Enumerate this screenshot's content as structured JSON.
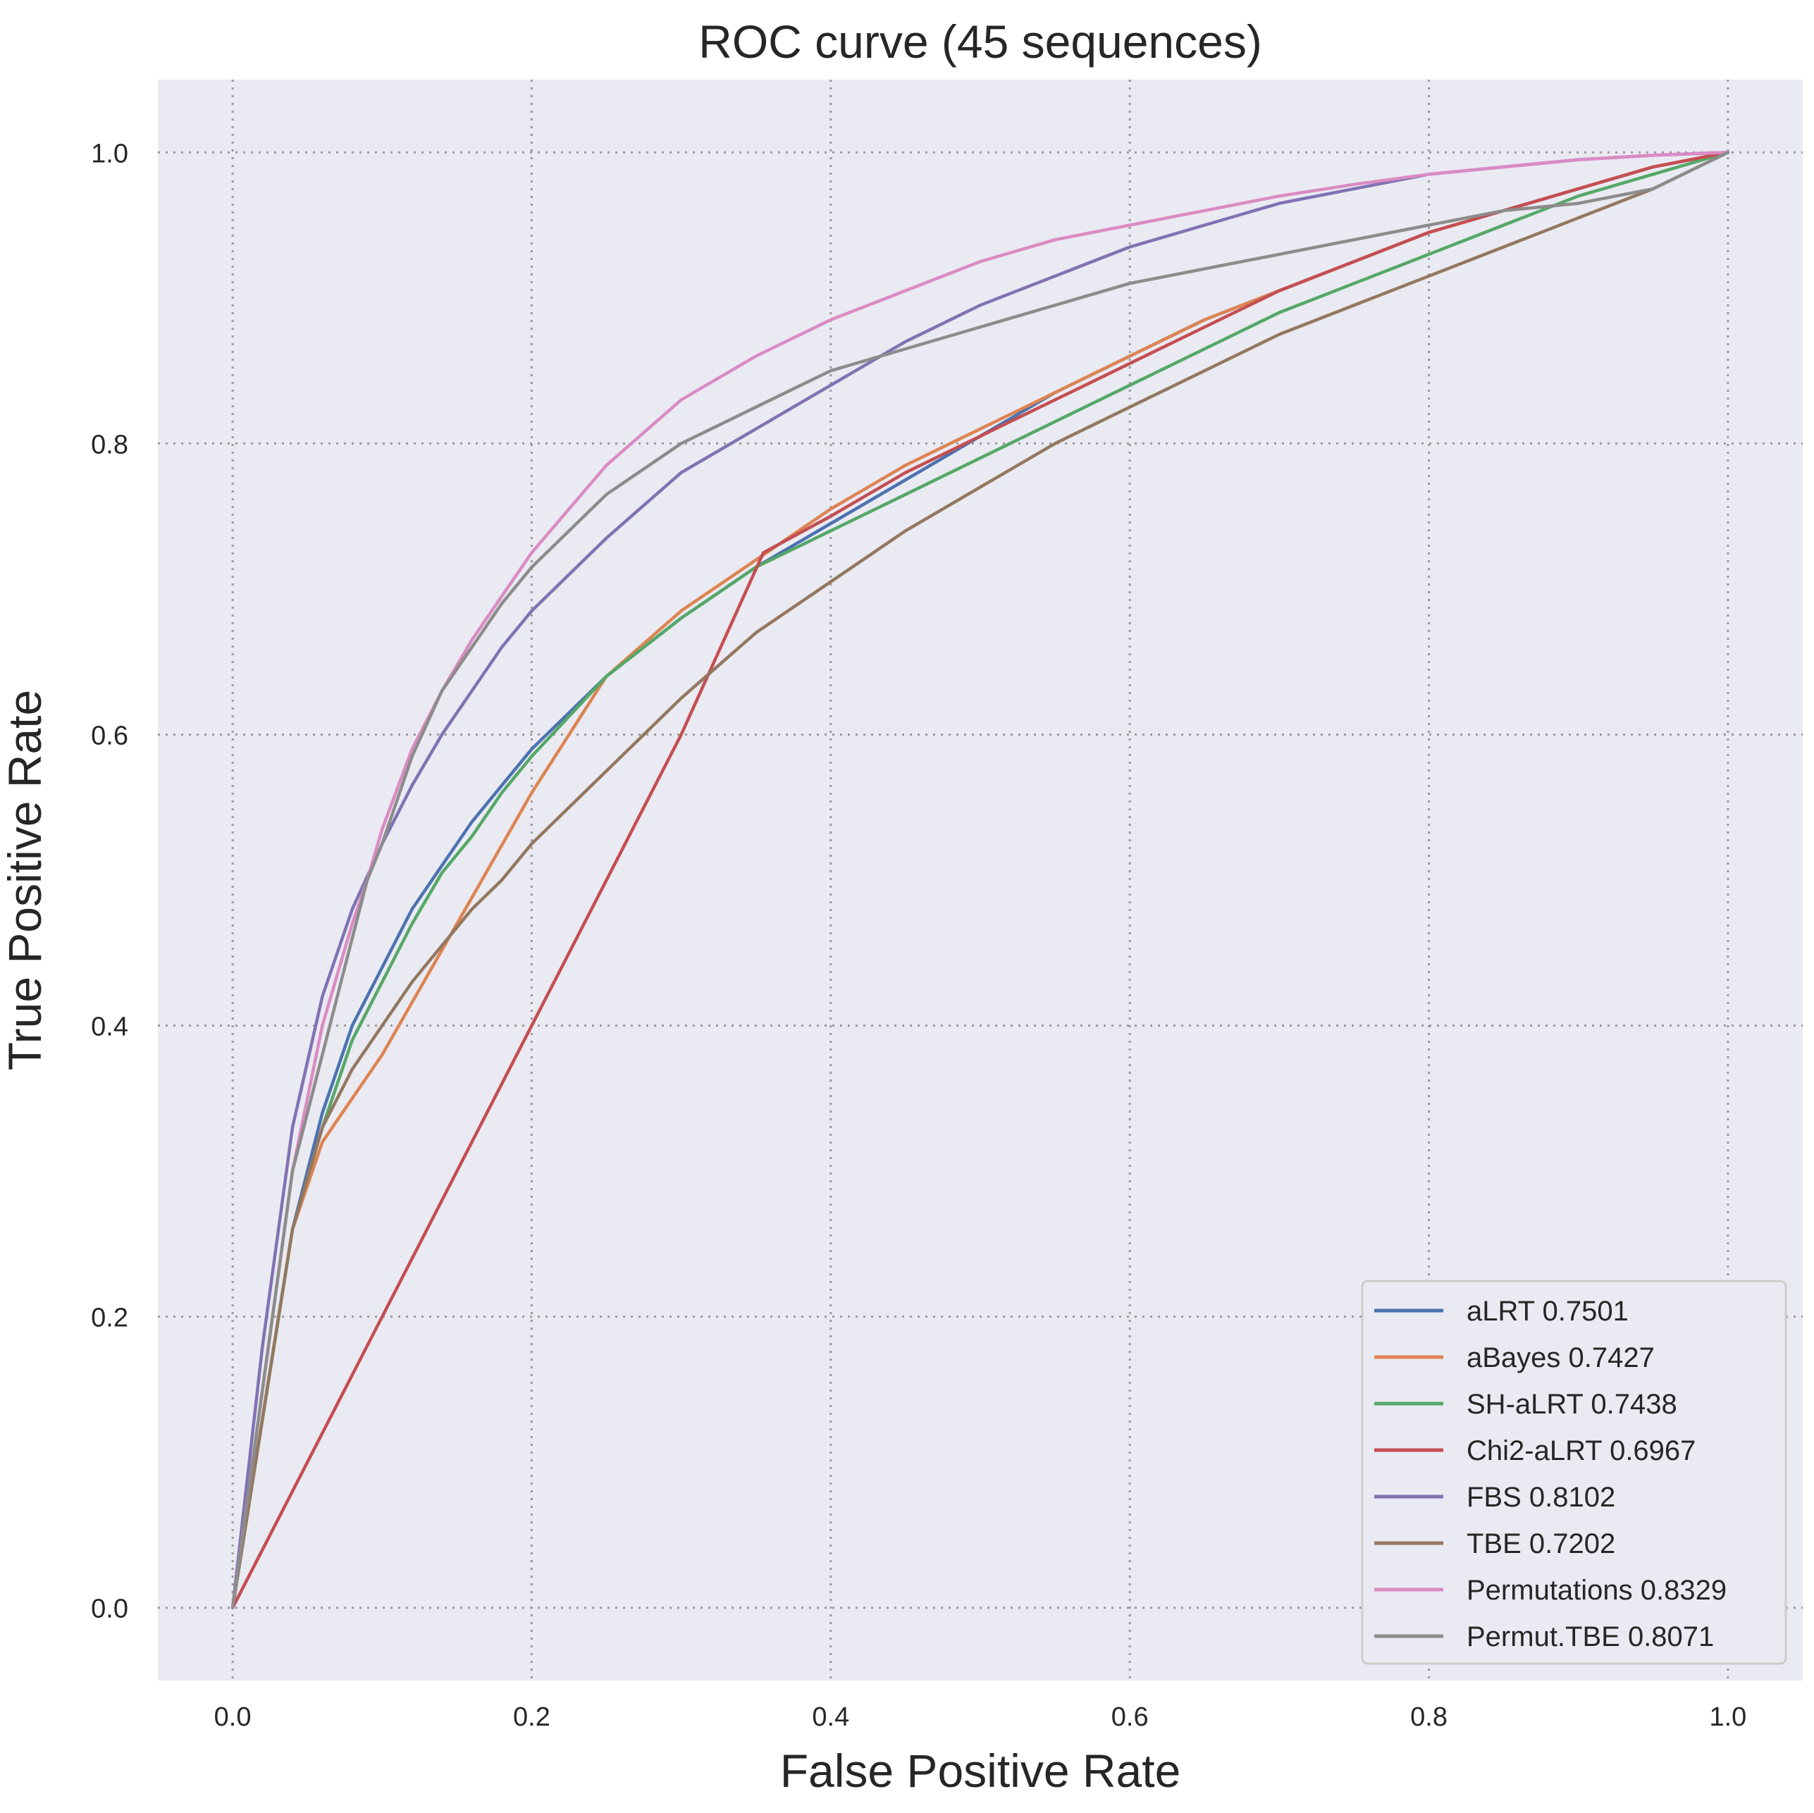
{
  "chart_data": {
    "type": "line",
    "title": "ROC curve (45 sequences)",
    "xlabel": "False Positive Rate",
    "ylabel": "True Positive Rate",
    "xlim": [
      -0.05,
      1.05
    ],
    "ylim": [
      -0.05,
      1.05
    ],
    "xticks": [
      0.0,
      0.2,
      0.4,
      0.6,
      0.8,
      1.0
    ],
    "xtick_labels": [
      "0.0",
      "0.2",
      "0.4",
      "0.6",
      "0.8",
      "1.0"
    ],
    "yticks": [
      0.0,
      0.2,
      0.4,
      0.6,
      0.8,
      1.0
    ],
    "ytick_labels": [
      "0.0",
      "0.2",
      "0.4",
      "0.6",
      "0.8",
      "1.0"
    ],
    "grid": true,
    "background": "#eaeaf2",
    "legend_position": "lower-right",
    "series": [
      {
        "name": "aLRT  0.7501",
        "color": "#4c72b0",
        "x": [
          0,
          0.02,
          0.04,
          0.06,
          0.08,
          0.1,
          0.12,
          0.14,
          0.16,
          0.18,
          0.2,
          0.25,
          0.3,
          0.35,
          0.4,
          0.45,
          0.5,
          0.55,
          0.6,
          0.65,
          0.7,
          0.75,
          0.8,
          0.85,
          0.9,
          0.95,
          1.0
        ],
        "y": [
          0,
          0.13,
          0.26,
          0.34,
          0.4,
          0.44,
          0.48,
          0.51,
          0.54,
          0.565,
          0.59,
          0.64,
          0.68,
          0.715,
          0.745,
          0.775,
          0.805,
          0.835,
          0.86,
          0.885,
          0.905,
          0.925,
          0.945,
          0.96,
          0.975,
          0.99,
          1.0
        ]
      },
      {
        "name": "aBayes  0.7427",
        "color": "#dd8452",
        "x": [
          0,
          0.02,
          0.04,
          0.06,
          0.08,
          0.1,
          0.15,
          0.2,
          0.25,
          0.3,
          0.35,
          0.4,
          0.45,
          0.5,
          0.55,
          0.6,
          0.65,
          0.7,
          0.75,
          0.8,
          0.85,
          0.9,
          0.95,
          1.0
        ],
        "y": [
          0,
          0.13,
          0.26,
          0.32,
          0.35,
          0.38,
          0.47,
          0.56,
          0.64,
          0.685,
          0.72,
          0.755,
          0.785,
          0.81,
          0.835,
          0.86,
          0.885,
          0.905,
          0.925,
          0.945,
          0.96,
          0.975,
          0.99,
          1.0
        ]
      },
      {
        "name": "SH-aLRT  0.7438",
        "color": "#55a868",
        "x": [
          0,
          0.02,
          0.04,
          0.06,
          0.08,
          0.1,
          0.12,
          0.14,
          0.16,
          0.18,
          0.2,
          0.25,
          0.3,
          0.35,
          0.4,
          0.45,
          0.5,
          0.55,
          0.6,
          0.65,
          0.7,
          0.75,
          0.8,
          0.85,
          0.9,
          0.95,
          1.0
        ],
        "y": [
          0,
          0.13,
          0.26,
          0.33,
          0.39,
          0.43,
          0.47,
          0.505,
          0.53,
          0.56,
          0.585,
          0.64,
          0.68,
          0.715,
          0.74,
          0.765,
          0.79,
          0.815,
          0.84,
          0.865,
          0.89,
          0.91,
          0.93,
          0.95,
          0.97,
          0.985,
          1.0
        ]
      },
      {
        "name": "Chi2-aLRT  0.6967",
        "color": "#c44e52",
        "x": [
          0,
          0.1,
          0.2,
          0.3,
          0.355,
          0.4,
          0.45,
          0.5,
          0.55,
          0.6,
          0.65,
          0.7,
          0.75,
          0.8,
          0.85,
          0.9,
          0.95,
          1.0
        ],
        "y": [
          0,
          0.2,
          0.4,
          0.6,
          0.725,
          0.75,
          0.78,
          0.805,
          0.83,
          0.855,
          0.88,
          0.905,
          0.925,
          0.945,
          0.96,
          0.975,
          0.99,
          1.0
        ]
      },
      {
        "name": "FBS  0.8102",
        "color": "#8172b3",
        "x": [
          0,
          0.02,
          0.04,
          0.06,
          0.08,
          0.1,
          0.12,
          0.14,
          0.16,
          0.18,
          0.2,
          0.25,
          0.3,
          0.35,
          0.4,
          0.45,
          0.5,
          0.55,
          0.6,
          0.65,
          0.7,
          0.75,
          0.8,
          0.85,
          0.9,
          0.95,
          1.0
        ],
        "y": [
          0,
          0.18,
          0.33,
          0.42,
          0.48,
          0.525,
          0.565,
          0.6,
          0.63,
          0.66,
          0.685,
          0.735,
          0.78,
          0.81,
          0.84,
          0.87,
          0.895,
          0.915,
          0.935,
          0.95,
          0.965,
          0.975,
          0.985,
          0.99,
          0.995,
          0.998,
          1.0
        ]
      },
      {
        "name": "TBE  0.7202",
        "color": "#937860",
        "x": [
          0,
          0.02,
          0.04,
          0.06,
          0.08,
          0.1,
          0.12,
          0.14,
          0.16,
          0.18,
          0.2,
          0.25,
          0.3,
          0.35,
          0.4,
          0.45,
          0.5,
          0.55,
          0.6,
          0.65,
          0.7,
          0.75,
          0.8,
          0.85,
          0.9,
          0.95,
          1.0
        ],
        "y": [
          0,
          0.13,
          0.26,
          0.33,
          0.37,
          0.4,
          0.43,
          0.455,
          0.48,
          0.5,
          0.525,
          0.575,
          0.625,
          0.67,
          0.705,
          0.74,
          0.77,
          0.8,
          0.825,
          0.85,
          0.875,
          0.895,
          0.915,
          0.935,
          0.955,
          0.975,
          1.0
        ]
      },
      {
        "name": "Permutations  0.8329",
        "color": "#da8bc3",
        "x": [
          0,
          0.02,
          0.04,
          0.06,
          0.08,
          0.09,
          0.1,
          0.12,
          0.14,
          0.16,
          0.18,
          0.2,
          0.25,
          0.3,
          0.35,
          0.4,
          0.45,
          0.5,
          0.55,
          0.6,
          0.65,
          0.7,
          0.75,
          0.8,
          0.85,
          0.9,
          0.95,
          1.0
        ],
        "y": [
          0,
          0.15,
          0.3,
          0.4,
          0.47,
          0.5,
          0.535,
          0.59,
          0.63,
          0.665,
          0.695,
          0.725,
          0.785,
          0.83,
          0.86,
          0.885,
          0.905,
          0.925,
          0.94,
          0.95,
          0.96,
          0.97,
          0.978,
          0.985,
          0.99,
          0.995,
          0.998,
          1.0
        ]
      },
      {
        "name": "Permut.TBE  0.8071",
        "color": "#8c8c8c",
        "x": [
          0,
          0.02,
          0.04,
          0.06,
          0.08,
          0.09,
          0.1,
          0.12,
          0.14,
          0.16,
          0.18,
          0.2,
          0.25,
          0.3,
          0.35,
          0.4,
          0.45,
          0.5,
          0.55,
          0.6,
          0.65,
          0.7,
          0.75,
          0.8,
          0.85,
          0.9,
          0.95,
          1.0
        ],
        "y": [
          0,
          0.15,
          0.3,
          0.38,
          0.46,
          0.5,
          0.525,
          0.585,
          0.63,
          0.66,
          0.69,
          0.715,
          0.765,
          0.8,
          0.825,
          0.85,
          0.865,
          0.88,
          0.895,
          0.91,
          0.92,
          0.93,
          0.94,
          0.95,
          0.96,
          0.965,
          0.975,
          1.0
        ]
      }
    ]
  }
}
